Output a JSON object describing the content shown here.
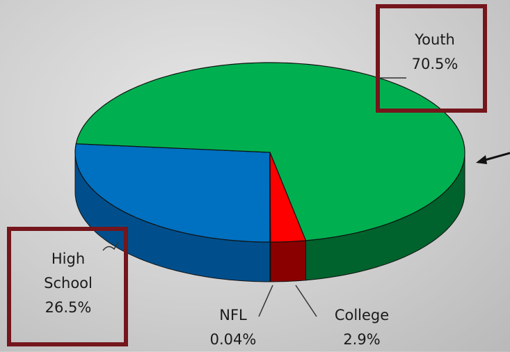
{
  "chart_data": {
    "type": "pie",
    "categories": [
      "High School",
      "Youth",
      "College",
      "NFL"
    ],
    "values": [
      26.5,
      70.5,
      2.9,
      0.04
    ],
    "value_labels": [
      "26.5%",
      "70.5%",
      "2.9%",
      "0.04%"
    ],
    "colors": [
      "#0070c0",
      "#00b050",
      "#ff0000",
      "#ffff00"
    ],
    "side_colors": [
      "#004f8c",
      "#00622c",
      "#8a0000",
      "#9a9a00"
    ]
  }
}
